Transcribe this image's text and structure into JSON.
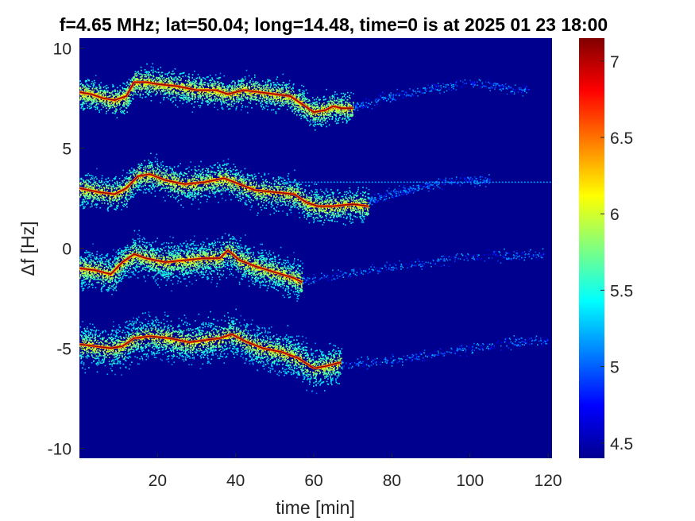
{
  "chart_data": {
    "type": "heatmap",
    "title": "f=4.65 MHz;  lat=50.04; long=14.48, time=0 is at 2025 01 23 18:00",
    "xlabel": "time [min]",
    "ylabel": "Δf [Hz]",
    "xlim": [
      0,
      121
    ],
    "ylim": [
      -10.5,
      10.5
    ],
    "x_ticks": [
      20,
      40,
      60,
      80,
      100,
      120
    ],
    "y_ticks": [
      -10,
      -5,
      0,
      5,
      10
    ],
    "colorbar": {
      "range": [
        4.4,
        7.15
      ],
      "ticks": [
        4.5,
        5,
        5.5,
        6,
        6.5,
        7
      ],
      "colormap": "jet"
    },
    "background_value": 4.45,
    "grid": false,
    "traces": [
      {
        "name": "",
        "points": [
          [
            0,
            7.8
          ],
          [
            3,
            7.7
          ],
          [
            6,
            7.5
          ],
          [
            9,
            7.4
          ],
          [
            12,
            7.6
          ],
          [
            14,
            8.3
          ],
          [
            17,
            8.3
          ],
          [
            20,
            8.2
          ],
          [
            25,
            8.1
          ],
          [
            30,
            7.9
          ],
          [
            35,
            7.9
          ],
          [
            38,
            7.7
          ],
          [
            42,
            7.9
          ],
          [
            46,
            7.8
          ],
          [
            50,
            7.7
          ],
          [
            54,
            7.6
          ],
          [
            57,
            7.2
          ],
          [
            60,
            6.8
          ],
          [
            63,
            6.9
          ],
          [
            65,
            7.1
          ],
          [
            67,
            7.0
          ],
          [
            70,
            7.0
          ]
        ],
        "extent": [
          0,
          70
        ],
        "spread_hz": 0.7,
        "tail": [
          [
            70,
            7.1
          ],
          [
            80,
            7.6
          ],
          [
            90,
            8.0
          ],
          [
            100,
            8.3
          ],
          [
            110,
            8.0
          ],
          [
            115,
            7.9
          ]
        ]
      },
      {
        "name": "",
        "points": [
          [
            0,
            3.0
          ],
          [
            5,
            2.8
          ],
          [
            9,
            2.7
          ],
          [
            12,
            3.0
          ],
          [
            15,
            3.6
          ],
          [
            18,
            3.7
          ],
          [
            22,
            3.4
          ],
          [
            27,
            3.2
          ],
          [
            32,
            3.3
          ],
          [
            37,
            3.5
          ],
          [
            41,
            3.2
          ],
          [
            45,
            2.9
          ],
          [
            50,
            2.8
          ],
          [
            55,
            2.7
          ],
          [
            58,
            2.3
          ],
          [
            61,
            2.1
          ],
          [
            65,
            2.1
          ],
          [
            70,
            2.2
          ],
          [
            74,
            2.1
          ]
        ],
        "extent": [
          0,
          74
        ],
        "spread_hz": 0.8,
        "tail": [
          [
            74,
            2.4
          ],
          [
            85,
            3.0
          ],
          [
            95,
            3.4
          ],
          [
            105,
            3.4
          ]
        ]
      },
      {
        "name": "",
        "points": [
          [
            0,
            -1.0
          ],
          [
            4,
            -1.1
          ],
          [
            8,
            -1.3
          ],
          [
            11,
            -0.7
          ],
          [
            14,
            -0.3
          ],
          [
            17,
            -0.5
          ],
          [
            22,
            -0.7
          ],
          [
            27,
            -0.6
          ],
          [
            32,
            -0.5
          ],
          [
            36,
            -0.5
          ],
          [
            38,
            -0.1
          ],
          [
            41,
            -0.6
          ],
          [
            45,
            -0.9
          ],
          [
            50,
            -1.2
          ],
          [
            55,
            -1.5
          ],
          [
            57,
            -1.7
          ]
        ],
        "extent": [
          0,
          57
        ],
        "spread_hz": 0.9,
        "tail": [
          [
            57,
            -1.6
          ],
          [
            70,
            -1.2
          ],
          [
            85,
            -0.8
          ],
          [
            100,
            -0.4
          ],
          [
            119,
            -0.3
          ]
        ]
      },
      {
        "name": "",
        "points": [
          [
            0,
            -4.8
          ],
          [
            4,
            -4.9
          ],
          [
            8,
            -5.0
          ],
          [
            11,
            -4.9
          ],
          [
            14,
            -4.5
          ],
          [
            18,
            -4.4
          ],
          [
            23,
            -4.5
          ],
          [
            28,
            -4.7
          ],
          [
            32,
            -4.6
          ],
          [
            36,
            -4.5
          ],
          [
            39,
            -4.3
          ],
          [
            43,
            -4.7
          ],
          [
            47,
            -5.0
          ],
          [
            52,
            -5.2
          ],
          [
            56,
            -5.5
          ],
          [
            60,
            -6.0
          ],
          [
            63,
            -5.9
          ],
          [
            67,
            -5.7
          ]
        ],
        "extent": [
          0,
          67
        ],
        "spread_hz": 1.0,
        "tail": [
          [
            67,
            -5.8
          ],
          [
            80,
            -5.6
          ],
          [
            90,
            -5.3
          ],
          [
            100,
            -5.0
          ],
          [
            110,
            -4.7
          ],
          [
            120,
            -4.6
          ]
        ]
      }
    ],
    "constant_line": {
      "y": 3.3,
      "x_start": 52,
      "x_end": 121
    }
  }
}
